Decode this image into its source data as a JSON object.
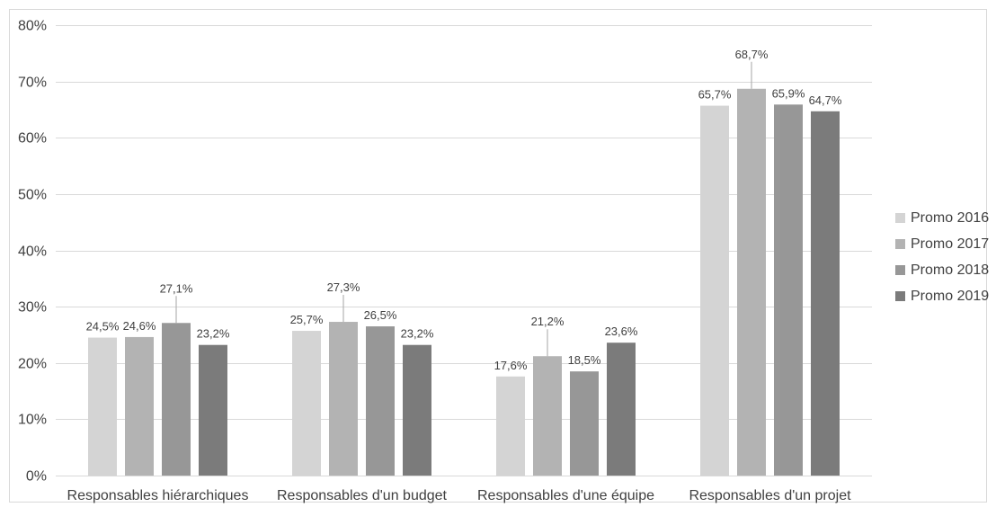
{
  "chart_data": {
    "type": "bar",
    "title": "",
    "xlabel": "",
    "ylabel": "",
    "ylim": [
      0,
      0.8
    ],
    "yticks": [
      "0%",
      "10%",
      "20%",
      "30%",
      "40%",
      "50%",
      "60%",
      "70%",
      "80%"
    ],
    "grid": true,
    "legend_position": "right",
    "categories": [
      "Responsables hiérarchiques",
      "Responsables d'un budget",
      "Responsables d'une équipe",
      "Responsables d'un projet"
    ],
    "series": [
      {
        "name": "Promo 2016",
        "color": "#d4d4d4",
        "values": [
          0.245,
          0.257,
          0.176,
          0.657
        ],
        "labels": [
          "24,5%",
          "25,7%",
          "17,6%",
          "65,7%"
        ]
      },
      {
        "name": "Promo 2017",
        "color": "#b3b3b3",
        "values": [
          0.246,
          0.273,
          0.212,
          0.687
        ],
        "labels": [
          "24,6%",
          "27,3%",
          "21,2%",
          "68,7%"
        ]
      },
      {
        "name": "Promo 2018",
        "color": "#979797",
        "values": [
          0.271,
          0.265,
          0.185,
          0.659
        ],
        "labels": [
          "27,1%",
          "26,5%",
          "18,5%",
          "65,9%"
        ]
      },
      {
        "name": "Promo 2019",
        "color": "#7b7b7b",
        "values": [
          0.232,
          0.232,
          0.236,
          0.647
        ],
        "labels": [
          "23,2%",
          "23,2%",
          "23,6%",
          "64,7%"
        ]
      }
    ]
  }
}
